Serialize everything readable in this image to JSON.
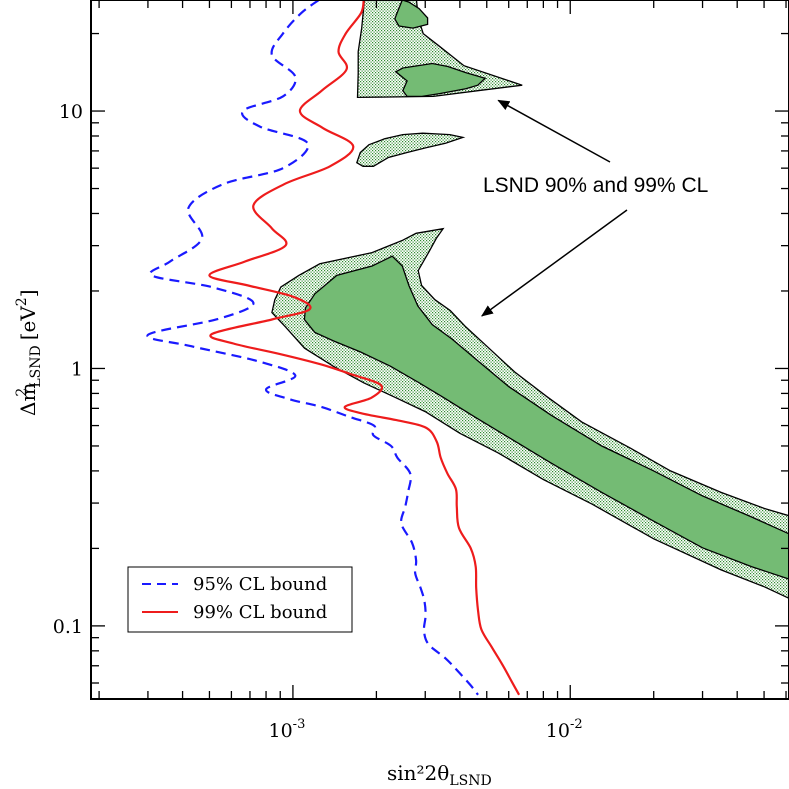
{
  "chart_data": {
    "type": "line",
    "title": "",
    "xlabel": "sin²2θ",
    "xlabel_sub": "LSND",
    "ylabel_prefix": "Δm",
    "ylabel_italic": "m",
    "ylabel_sup": "2",
    "ylabel_sub": "LSND",
    "ylabel_unit": "[eV",
    "ylabel_unit_sup": "2",
    "ylabel_unit_close": "]",
    "xscale": "log",
    "yscale": "log",
    "xlim": [
      0.000187,
      0.0615
    ],
    "ylim": [
      0.052,
      27.0
    ],
    "x_ticks": [
      {
        "value": 0.001,
        "base": "10",
        "exp": "-3"
      },
      {
        "value": 0.01,
        "base": "10",
        "exp": "-2"
      }
    ],
    "y_ticks": [
      {
        "value": 0.1,
        "label": "0.1"
      },
      {
        "value": 1,
        "label": "1"
      },
      {
        "value": 10,
        "label": "10"
      }
    ],
    "series": [
      {
        "name": "95% CL bound",
        "color": "#1a1aff",
        "dash": "dashed",
        "points": [
          [
            0.00124,
            27.0
          ],
          [
            0.00107,
            24.0
          ],
          [
            0.00092,
            20.0
          ],
          [
            0.00084,
            16.5
          ],
          [
            0.00102,
            13.6
          ],
          [
            0.00092,
            11.4
          ],
          [
            0.00066,
            10.0
          ],
          [
            0.00076,
            8.7
          ],
          [
            0.00113,
            7.5
          ],
          [
            0.00092,
            6.0
          ],
          [
            0.00056,
            5.2
          ],
          [
            0.00042,
            4.2
          ],
          [
            0.00047,
            3.2
          ],
          [
            0.00036,
            2.6
          ],
          [
            0.00031,
            2.3
          ],
          [
            0.00051,
            2.07
          ],
          [
            0.00072,
            1.8
          ],
          [
            0.00054,
            1.56
          ],
          [
            0.0003,
            1.35
          ],
          [
            0.00043,
            1.22
          ],
          [
            0.00074,
            1.07
          ],
          [
            0.00102,
            0.94
          ],
          [
            0.0008,
            0.83
          ],
          [
            0.00097,
            0.76
          ],
          [
            0.00126,
            0.71
          ],
          [
            0.00159,
            0.65
          ],
          [
            0.00196,
            0.6
          ],
          [
            0.00195,
            0.55
          ],
          [
            0.00226,
            0.5
          ],
          [
            0.00238,
            0.45
          ],
          [
            0.00265,
            0.39
          ],
          [
            0.0026,
            0.33
          ],
          [
            0.00254,
            0.29
          ],
          [
            0.00246,
            0.25
          ],
          [
            0.00269,
            0.21
          ],
          [
            0.00278,
            0.18
          ],
          [
            0.00276,
            0.16
          ],
          [
            0.00289,
            0.14
          ],
          [
            0.00298,
            0.125
          ],
          [
            0.00301,
            0.11
          ],
          [
            0.00297,
            0.096
          ],
          [
            0.00308,
            0.085
          ],
          [
            0.00354,
            0.075
          ],
          [
            0.00392,
            0.067
          ],
          [
            0.00436,
            0.059
          ],
          [
            0.00465,
            0.054
          ]
        ]
      },
      {
        "name": "99% CL bound",
        "color": "#ee1c1c",
        "dash": "solid",
        "points": [
          [
            0.0018,
            27.0
          ],
          [
            0.00176,
            24.0
          ],
          [
            0.00155,
            20.0
          ],
          [
            0.00146,
            17.0
          ],
          [
            0.00156,
            14.5
          ],
          [
            0.00127,
            12.0
          ],
          [
            0.00106,
            10.0
          ],
          [
            0.00128,
            8.6
          ],
          [
            0.00165,
            7.3
          ],
          [
            0.00136,
            6.1
          ],
          [
            0.00093,
            5.2
          ],
          [
            0.00072,
            4.3
          ],
          [
            0.00084,
            3.5
          ],
          [
            0.00094,
            3.0
          ],
          [
            0.00067,
            2.6
          ],
          [
            0.0005,
            2.3
          ],
          [
            0.00069,
            2.1
          ],
          [
            0.001,
            1.9
          ],
          [
            0.00115,
            1.7
          ],
          [
            0.00084,
            1.55
          ],
          [
            0.00051,
            1.36
          ],
          [
            0.00061,
            1.25
          ],
          [
            0.00089,
            1.14
          ],
          [
            0.00125,
            1.04
          ],
          [
            0.00162,
            0.95
          ],
          [
            0.00208,
            0.86
          ],
          [
            0.00192,
            0.77
          ],
          [
            0.00154,
            0.71
          ],
          [
            0.00176,
            0.67
          ],
          [
            0.00236,
            0.63
          ],
          [
            0.00301,
            0.59
          ],
          [
            0.0033,
            0.52
          ],
          [
            0.00341,
            0.45
          ],
          [
            0.00361,
            0.39
          ],
          [
            0.00387,
            0.34
          ],
          [
            0.0039,
            0.29
          ],
          [
            0.00397,
            0.24
          ],
          [
            0.00438,
            0.2
          ],
          [
            0.00456,
            0.17
          ],
          [
            0.00458,
            0.14
          ],
          [
            0.00465,
            0.115
          ],
          [
            0.00478,
            0.097
          ],
          [
            0.0052,
            0.083
          ],
          [
            0.00568,
            0.071
          ],
          [
            0.00614,
            0.061
          ],
          [
            0.00654,
            0.054
          ]
        ]
      }
    ],
    "regions": [
      {
        "name": "LSND 99% CL",
        "level": "99",
        "polygons": [
          [
            [
              0.00181,
              27.0
            ],
            [
              0.00279,
              27.0
            ],
            [
              0.00283,
              23.0
            ],
            [
              0.00295,
              20.0
            ],
            [
              0.00334,
              18.0
            ],
            [
              0.00414,
              15.0
            ],
            [
              0.00671,
              12.6
            ],
            [
              0.00464,
              12.0
            ],
            [
              0.00321,
              11.4
            ],
            [
              0.00171,
              11.3
            ],
            [
              0.00172,
              14.0
            ],
            [
              0.00172,
              17.0
            ],
            [
              0.00177,
              21.0
            ],
            [
              0.00181,
              27.0
            ]
          ],
          [
            [
              0.00188,
              7.4
            ],
            [
              0.00214,
              7.8
            ],
            [
              0.00249,
              8.1
            ],
            [
              0.00294,
              8.2
            ],
            [
              0.00368,
              8.1
            ],
            [
              0.0041,
              7.9
            ],
            [
              0.00355,
              7.5
            ],
            [
              0.00302,
              7.2
            ],
            [
              0.00258,
              6.9
            ],
            [
              0.00221,
              6.6
            ],
            [
              0.00195,
              6.1
            ],
            [
              0.00179,
              6.1
            ],
            [
              0.0017,
              6.3
            ],
            [
              0.00175,
              6.9
            ],
            [
              0.00188,
              7.4
            ]
          ],
          [
            [
              0.000904,
              2.07
            ],
            [
              0.00105,
              2.3
            ],
            [
              0.00125,
              2.55
            ],
            [
              0.00193,
              2.82
            ],
            [
              0.00249,
              3.15
            ],
            [
              0.00278,
              3.35
            ],
            [
              0.00348,
              3.49
            ],
            [
              0.00329,
              3.2
            ],
            [
              0.0031,
              2.85
            ],
            [
              0.00283,
              2.4
            ],
            [
              0.00291,
              2.1
            ],
            [
              0.00325,
              1.85
            ],
            [
              0.00369,
              1.68
            ],
            [
              0.0042,
              1.45
            ],
            [
              0.005,
              1.22
            ],
            [
              0.0063,
              0.97
            ],
            [
              0.0082,
              0.78
            ],
            [
              0.011,
              0.62
            ],
            [
              0.0165,
              0.49
            ],
            [
              0.023,
              0.4
            ],
            [
              0.035,
              0.33
            ],
            [
              0.05,
              0.286
            ],
            [
              0.0615,
              0.268
            ],
            [
              0.0615,
              0.128
            ],
            [
              0.05,
              0.142
            ],
            [
              0.035,
              0.165
            ],
            [
              0.02,
              0.218
            ],
            [
              0.012,
              0.297
            ],
            [
              0.008,
              0.37
            ],
            [
              0.0055,
              0.47
            ],
            [
              0.004,
              0.56
            ],
            [
              0.003,
              0.68
            ],
            [
              0.00235,
              0.77
            ],
            [
              0.0018,
              0.88
            ],
            [
              0.0014,
              1.02
            ],
            [
              0.0011,
              1.2
            ],
            [
              0.00094,
              1.45
            ],
            [
              0.00084,
              1.65
            ],
            [
              0.00086,
              1.85
            ],
            [
              0.000904,
              2.07
            ]
          ]
        ]
      },
      {
        "name": "LSND 90% CL",
        "level": "90",
        "polygons": [
          [
            [
              0.00248,
              27.0
            ],
            [
              0.00262,
              26.5
            ],
            [
              0.00285,
              25.0
            ],
            [
              0.00306,
              23.0
            ],
            [
              0.00306,
              21.7
            ],
            [
              0.00271,
              21.0
            ],
            [
              0.00241,
              21.4
            ],
            [
              0.00233,
              22.8
            ],
            [
              0.00239,
              24.5
            ],
            [
              0.00248,
              27.0
            ]
          ],
          [
            [
              0.00249,
              14.7
            ],
            [
              0.00318,
              15.3
            ],
            [
              0.00362,
              14.9
            ],
            [
              0.0042,
              14.1
            ],
            [
              0.00493,
              13.4
            ],
            [
              0.00464,
              12.6
            ],
            [
              0.0042,
              12.2
            ],
            [
              0.0034,
              11.7
            ],
            [
              0.00292,
              11.4
            ],
            [
              0.00258,
              11.4
            ],
            [
              0.00249,
              12.0
            ],
            [
              0.00258,
              13.1
            ],
            [
              0.00235,
              14.2
            ],
            [
              0.00249,
              14.7
            ]
          ],
          [
            [
              0.00111,
              1.72
            ],
            [
              0.0012,
              1.95
            ],
            [
              0.00144,
              2.3
            ],
            [
              0.00193,
              2.5
            ],
            [
              0.00228,
              2.73
            ],
            [
              0.00248,
              2.5
            ],
            [
              0.00262,
              2.1
            ],
            [
              0.00282,
              1.75
            ],
            [
              0.00318,
              1.48
            ],
            [
              0.00375,
              1.3
            ],
            [
              0.0046,
              1.08
            ],
            [
              0.006,
              0.85
            ],
            [
              0.0085,
              0.66
            ],
            [
              0.013,
              0.5
            ],
            [
              0.02,
              0.4
            ],
            [
              0.03,
              0.32
            ],
            [
              0.045,
              0.265
            ],
            [
              0.0615,
              0.228
            ],
            [
              0.0615,
              0.152
            ],
            [
              0.045,
              0.17
            ],
            [
              0.03,
              0.201
            ],
            [
              0.02,
              0.255
            ],
            [
              0.013,
              0.33
            ],
            [
              0.0085,
              0.43
            ],
            [
              0.006,
              0.54
            ],
            [
              0.0045,
              0.65
            ],
            [
              0.0035,
              0.77
            ],
            [
              0.0028,
              0.89
            ],
            [
              0.00225,
              1.02
            ],
            [
              0.00175,
              1.16
            ],
            [
              0.0014,
              1.28
            ],
            [
              0.0012,
              1.38
            ],
            [
              0.0011,
              1.55
            ],
            [
              0.00111,
              1.72
            ]
          ]
        ]
      }
    ],
    "annotation": {
      "text": "LSND 90% and 99% CL",
      "arrow_targets": [
        [
          0.0055,
          11.0
        ],
        [
          0.0048,
          1.6
        ]
      ]
    },
    "legend": {
      "position": "bottom-left",
      "entries": [
        {
          "label": "95% CL bound",
          "series": 0
        },
        {
          "label": "99% CL bound",
          "series": 1
        }
      ]
    }
  }
}
